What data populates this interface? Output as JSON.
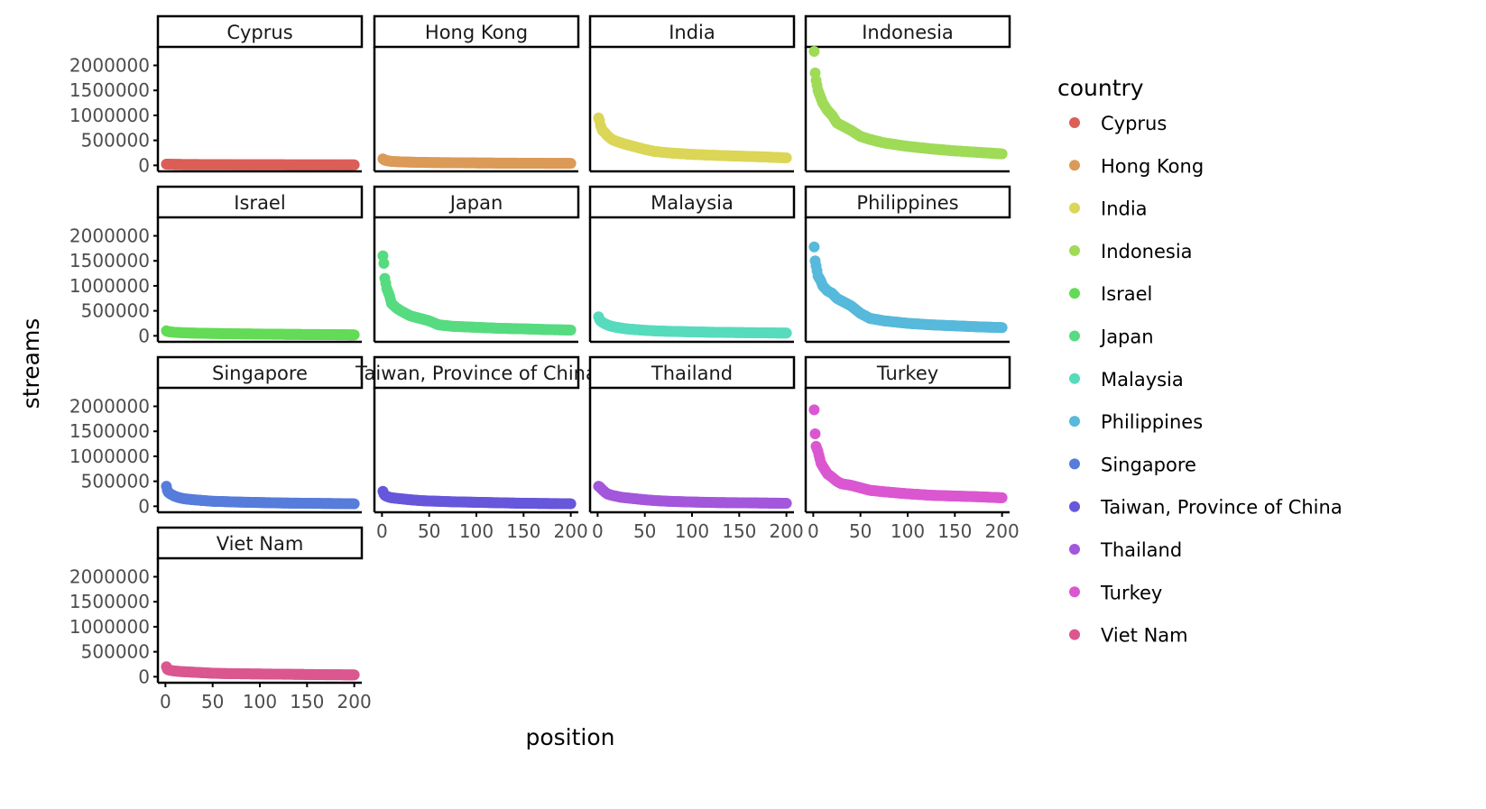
{
  "chart_data": {
    "type": "scatter",
    "facet": "country",
    "xlabel": "position",
    "ylabel": "streams",
    "xlim": [
      -8,
      208
    ],
    "ylim": [
      -120000,
      2370000
    ],
    "x_ticks": [
      0,
      50,
      100,
      150,
      200
    ],
    "x_tick_labels": [
      "0",
      "50",
      "100",
      "150",
      "200"
    ],
    "y_ticks": [
      0,
      500000,
      1000000,
      1500000,
      2000000
    ],
    "y_tick_labels": [
      "0",
      "500000",
      "1000000",
      "1500000",
      "2000000"
    ],
    "legend": {
      "title": "country",
      "placement": "right"
    },
    "sample_positions": [
      1,
      2,
      3,
      5,
      8,
      10,
      15,
      20,
      25,
      30,
      40,
      50,
      60,
      75,
      100,
      125,
      150,
      175,
      200
    ],
    "series": [
      {
        "name": "Cyprus",
        "color": "#db5f57",
        "values": [
          25000,
          24000,
          23000,
          22000,
          21000,
          20000,
          19000,
          18000,
          17500,
          17000,
          16000,
          15000,
          14500,
          14000,
          13000,
          12000,
          11000,
          10500,
          10000
        ]
      },
      {
        "name": "Hong Kong",
        "color": "#db9a57",
        "values": [
          130000,
          115000,
          105000,
          95000,
          85000,
          80000,
          75000,
          70000,
          67000,
          65000,
          60000,
          57000,
          55000,
          52000,
          48000,
          45000,
          43000,
          41000,
          40000
        ]
      },
      {
        "name": "India",
        "color": "#dbd657",
        "values": [
          950000,
          900000,
          800000,
          700000,
          650000,
          600000,
          520000,
          480000,
          450000,
          420000,
          370000,
          320000,
          280000,
          250000,
          220000,
          200000,
          185000,
          170000,
          150000
        ]
      },
      {
        "name": "Indonesia",
        "color": "#9fdb57",
        "values": [
          2280000,
          1850000,
          1700000,
          1500000,
          1350000,
          1250000,
          1100000,
          1000000,
          850000,
          800000,
          700000,
          580000,
          520000,
          450000,
          380000,
          330000,
          290000,
          260000,
          230000
        ]
      },
      {
        "name": "Israel",
        "color": "#63db57",
        "values": [
          100000,
          90000,
          85000,
          80000,
          75000,
          70000,
          65000,
          60000,
          57000,
          55000,
          50000,
          47000,
          45000,
          40000,
          35000,
          30000,
          27000,
          24000,
          20000
        ]
      },
      {
        "name": "Japan",
        "color": "#57db80",
        "values": [
          1600000,
          1450000,
          1150000,
          950000,
          800000,
          650000,
          560000,
          500000,
          450000,
          400000,
          350000,
          300000,
          220000,
          190000,
          170000,
          150000,
          140000,
          125000,
          115000
        ]
      },
      {
        "name": "Malaysia",
        "color": "#57dbbd",
        "values": [
          380000,
          330000,
          300000,
          270000,
          240000,
          220000,
          190000,
          170000,
          155000,
          140000,
          125000,
          110000,
          100000,
          90000,
          80000,
          70000,
          65000,
          60000,
          55000
        ]
      },
      {
        "name": "Philippines",
        "color": "#57b9db",
        "values": [
          1780000,
          1500000,
          1400000,
          1200000,
          1100000,
          1000000,
          900000,
          850000,
          750000,
          700000,
          600000,
          450000,
          350000,
          300000,
          250000,
          220000,
          200000,
          180000,
          165000
        ]
      },
      {
        "name": "Singapore",
        "color": "#577cdb",
        "values": [
          400000,
          320000,
          280000,
          250000,
          220000,
          200000,
          170000,
          150000,
          140000,
          130000,
          115000,
          100000,
          95000,
          85000,
          75000,
          65000,
          60000,
          55000,
          50000
        ]
      },
      {
        "name": "Taiwan, Province of China",
        "color": "#6657db",
        "values": [
          300000,
          250000,
          220000,
          200000,
          180000,
          170000,
          160000,
          150000,
          140000,
          130000,
          115000,
          105000,
          100000,
          90000,
          80000,
          70000,
          60000,
          55000,
          50000
        ]
      },
      {
        "name": "Thailand",
        "color": "#a357db",
        "values": [
          400000,
          390000,
          370000,
          330000,
          280000,
          250000,
          220000,
          200000,
          180000,
          170000,
          150000,
          130000,
          115000,
          100000,
          85000,
          75000,
          70000,
          65000,
          60000
        ]
      },
      {
        "name": "Turkey",
        "color": "#db57d1",
        "values": [
          1930000,
          1450000,
          1200000,
          1100000,
          870000,
          800000,
          650000,
          580000,
          500000,
          450000,
          420000,
          370000,
          320000,
          290000,
          250000,
          220000,
          205000,
          190000,
          170000
        ]
      },
      {
        "name": "Viet Nam",
        "color": "#db578f",
        "values": [
          200000,
          150000,
          140000,
          130000,
          120000,
          115000,
          105000,
          100000,
          95000,
          90000,
          80000,
          70000,
          65000,
          60000,
          55000,
          50000,
          45000,
          40000,
          38000
        ]
      }
    ]
  }
}
